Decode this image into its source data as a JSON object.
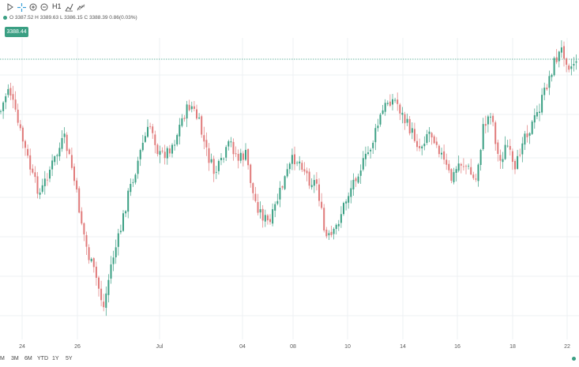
{
  "toolbar": {
    "tools": [
      {
        "name": "cursor-icon"
      },
      {
        "name": "crosshair-icon"
      },
      {
        "name": "zoom-in-icon"
      },
      {
        "name": "zoom-out-icon"
      },
      {
        "name": "indicators-icon"
      }
    ],
    "timeframe": "H1"
  },
  "legend": {
    "ohlc_text": "O 3387.52  H 3389.63  L 3386.15  C 3388.39  0.86(0.03%)",
    "last_price": "3388.44"
  },
  "colors": {
    "up": "#3a9f83",
    "down": "#e07a7a",
    "accent": "#3a9f83",
    "grid": "#eef0f3",
    "price_line": "#3a9f83"
  },
  "range_buttons": [
    "M",
    "3M",
    "6M",
    "YTD",
    "1Y",
    "5Y"
  ],
  "chart_data": {
    "type": "candlestick",
    "x_tick_labels": [
      "24",
      "26",
      "Jul",
      "04",
      "08",
      "10",
      "14",
      "16",
      "18",
      "22"
    ],
    "last_price": 3388.44,
    "ylim": [
      3380,
      3400
    ],
    "grid": true,
    "series": [
      {
        "ys": [
          141,
          108,
          151,
          186,
          224,
          246,
          218,
          198,
          175,
          213,
          270,
          322,
          350,
          390,
          332,
          298,
          250,
          216,
          180,
          157,
          198,
          192,
          178,
          148,
          132,
          154,
          192,
          220,
          205,
          180,
          202,
          196,
          252,
          272,
          285,
          252,
          224,
          200,
          206,
          228,
          232,
          302,
          300,
          270,
          244,
          219,
          204,
          180,
          148,
          126,
          128,
          152,
          168,
          188,
          165,
          176,
          205,
          228,
          205,
          212,
          232,
          162,
          140,
          208,
          182,
          222,
          171,
          162,
          140,
          108,
          78,
          62,
          86,
          70
        ]
      }
    ]
  }
}
